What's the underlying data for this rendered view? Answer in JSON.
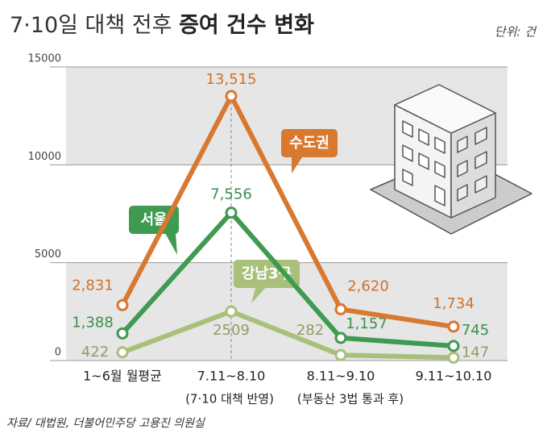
{
  "chart_data": {
    "type": "line",
    "title": [
      "7·10일 대책 전후 ",
      "증여 건수 변화"
    ],
    "unit": "단위: 건",
    "source": "자료/ 대법원, 더불어민주당 고용진 의원실",
    "categories": [
      "1~6월 월평균",
      "7.11~8.10",
      "8.11~9.10",
      "9.11~10.10"
    ],
    "category_notes": [
      null,
      "(7·10 대책 반영)",
      "(부동산 3법 통과 후)",
      null
    ],
    "series": [
      {
        "name": "수도권",
        "color": "#d9782f",
        "values": [
          2831,
          13515,
          2620,
          1734
        ],
        "value_labels": [
          "2,831",
          "13,515",
          "2,620",
          "1,734"
        ]
      },
      {
        "name": "서울",
        "color": "#3f9a52",
        "values": [
          1388,
          7556,
          1157,
          745
        ],
        "value_labels": [
          "1,388",
          "7,556",
          "1,157",
          "745"
        ]
      },
      {
        "name": "강남3구",
        "color": "#a8c07a",
        "values": [
          422,
          2509,
          282,
          147
        ]
      }
    ],
    "ylim": [
      0,
      15000
    ],
    "yticks": [
      0,
      5000,
      10000,
      15000
    ],
    "grid": true
  }
}
